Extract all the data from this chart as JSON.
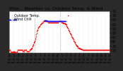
{
  "title": "Milw... Weather vs. Outdoor Temp. & Wind ...",
  "legend": [
    "Outdoor Temp.",
    "Wind Chill"
  ],
  "bg_color": "#2a2a2a",
  "plot_bg": "#ffffff",
  "outdoor_color": "#ff0000",
  "windchill_color": "#0000ff",
  "title_color": "#000000",
  "title_fontsize": 4.5,
  "legend_fontsize": 3.5,
  "tick_fontsize": 3.5,
  "marker_size": 1.2,
  "ylim": [
    27,
    75
  ],
  "xlim": [
    0,
    287
  ],
  "yticks": [
    75,
    70,
    65,
    60,
    55,
    50,
    45,
    40,
    35,
    30
  ],
  "vlines": [
    72,
    144
  ],
  "outdoor_x": [
    0,
    1,
    2,
    3,
    4,
    5,
    6,
    7,
    8,
    9,
    10,
    11,
    12,
    13,
    14,
    15,
    16,
    17,
    18,
    19,
    20,
    21,
    22,
    23,
    24,
    25,
    26,
    27,
    28,
    29,
    30,
    31,
    32,
    33,
    34,
    35,
    36,
    37,
    38,
    39,
    40,
    41,
    42,
    43,
    44,
    45,
    46,
    47,
    48,
    49,
    50,
    51,
    52,
    53,
    54,
    55,
    56,
    57,
    58,
    59,
    60,
    61,
    62,
    63,
    64,
    65,
    66,
    67,
    68,
    69,
    70,
    71,
    72,
    73,
    74,
    75,
    76,
    77,
    78,
    79,
    80,
    81,
    82,
    83,
    84,
    85,
    86,
    87,
    88,
    89,
    90,
    91,
    92,
    93,
    94,
    95,
    96,
    97,
    98,
    99,
    100,
    101,
    102,
    103,
    104,
    105,
    106,
    107,
    108,
    109,
    110,
    111,
    112,
    113,
    114,
    115,
    116,
    117,
    118,
    119,
    120,
    121,
    122,
    123,
    124,
    125,
    126,
    127,
    128,
    129,
    130,
    131,
    132,
    133,
    134,
    135,
    136,
    137,
    138,
    139,
    140,
    141,
    142,
    143,
    144,
    145,
    146,
    147,
    148,
    149,
    150,
    151,
    152,
    153,
    154,
    155,
    156,
    157,
    158,
    159,
    160,
    161,
    162,
    163,
    164,
    165,
    166,
    167,
    168,
    169,
    170,
    171,
    172,
    173,
    174,
    175,
    176,
    177,
    178,
    179,
    180,
    181,
    182,
    183,
    184,
    185,
    186,
    187,
    188,
    189,
    190,
    191,
    192,
    193,
    194,
    195,
    196,
    197,
    198,
    199,
    200,
    201,
    202,
    203,
    204,
    205,
    206,
    207,
    208,
    209,
    210,
    211,
    212,
    213,
    214,
    215,
    216,
    217,
    218,
    219,
    220,
    221,
    222,
    223,
    224,
    225,
    226,
    227,
    228,
    229,
    230,
    231,
    232,
    233,
    234,
    235,
    236,
    237,
    238,
    239,
    240,
    241,
    242,
    243,
    244,
    245,
    246,
    247,
    248,
    249,
    250,
    251,
    252,
    253,
    254,
    255,
    256,
    257,
    258,
    259,
    260,
    261,
    262,
    263,
    264,
    265,
    266,
    267,
    268,
    269,
    270,
    271,
    272,
    273,
    274,
    275,
    276,
    277,
    278,
    279,
    280,
    281,
    282,
    283,
    284,
    285,
    286,
    287
  ],
  "outdoor_y": [
    30,
    30,
    30,
    29,
    29,
    28,
    28,
    28,
    28,
    28,
    28,
    28,
    29,
    29,
    28,
    28,
    28,
    28,
    27,
    27,
    27,
    28,
    29,
    30,
    30,
    30,
    30,
    30,
    30,
    30,
    30,
    30,
    30,
    30,
    30,
    30,
    30,
    30,
    29,
    29,
    29,
    29,
    30,
    30,
    30,
    30,
    30,
    30,
    30,
    29,
    29,
    29,
    29,
    29,
    29,
    29,
    29,
    30,
    30,
    30,
    31,
    31,
    32,
    32,
    33,
    33,
    34,
    35,
    36,
    37,
    38,
    39,
    40,
    41,
    42,
    44,
    46,
    48,
    50,
    52,
    53,
    54,
    55,
    56,
    57,
    57,
    58,
    58,
    59,
    59,
    60,
    60,
    61,
    61,
    62,
    62,
    62,
    63,
    63,
    63,
    63,
    63,
    63,
    63,
    63,
    63,
    63,
    63,
    63,
    63,
    63,
    62,
    62,
    62,
    62,
    62,
    62,
    62,
    62,
    62,
    62,
    62,
    62,
    62,
    62,
    62,
    62,
    62,
    62,
    62,
    62,
    62,
    62,
    62,
    62,
    62,
    62,
    62,
    62,
    62,
    63,
    63,
    63,
    63,
    63,
    63,
    63,
    63,
    63,
    62,
    62,
    62,
    62,
    61,
    61,
    61,
    61,
    61,
    61,
    60,
    60,
    59,
    59,
    58,
    57,
    56,
    55,
    55,
    70,
    54,
    53,
    52,
    51,
    50,
    50,
    49,
    48,
    47,
    46,
    45,
    45,
    44,
    43,
    42,
    41,
    40,
    40,
    39,
    38,
    37,
    37,
    36,
    35,
    35,
    34,
    34,
    33,
    33,
    33,
    33,
    32,
    32,
    32,
    32,
    31,
    31,
    31,
    31,
    31,
    30,
    30,
    30,
    30,
    30,
    30,
    30,
    30,
    30,
    30,
    30,
    30,
    30,
    30,
    30,
    30,
    30,
    30,
    30,
    30,
    30,
    30,
    30,
    30,
    30,
    30,
    30,
    30,
    30,
    30,
    30,
    30,
    30,
    30,
    30,
    30,
    30,
    30,
    30,
    30,
    30,
    30,
    30,
    30,
    30,
    30,
    30,
    30,
    30,
    30,
    30,
    30,
    30,
    30,
    30,
    30,
    30,
    30,
    30,
    30,
    30,
    30,
    30,
    30,
    30,
    30,
    30,
    30,
    30,
    30,
    30,
    30,
    30,
    30,
    30,
    30,
    30,
    30,
    30
  ],
  "wc_x": [
    0,
    1,
    2,
    3,
    4,
    5,
    6,
    7,
    8,
    9,
    10,
    11,
    12,
    13,
    14,
    15,
    16,
    17,
    18,
    19,
    20,
    100,
    101,
    102,
    103,
    104,
    105,
    106,
    107,
    108,
    109,
    110,
    111,
    112,
    113,
    114,
    115,
    116,
    117,
    118,
    119,
    120,
    121,
    122,
    123,
    124,
    125,
    126,
    127,
    128,
    129,
    130,
    131,
    132,
    133,
    134,
    135,
    136,
    137,
    138,
    139,
    140,
    141,
    142,
    143,
    144,
    145,
    146,
    147,
    148,
    149,
    150,
    151,
    152,
    153,
    154,
    155,
    156,
    157,
    158,
    159,
    160
  ],
  "wc_y": [
    65,
    65,
    65,
    65,
    65,
    65,
    65,
    65,
    65,
    65,
    65,
    65,
    65,
    65,
    65,
    65,
    65,
    65,
    65,
    65,
    65,
    64,
    64,
    64,
    64,
    64,
    64,
    64,
    63,
    63,
    63,
    63,
    63,
    63,
    63,
    63,
    63,
    63,
    63,
    63,
    63,
    63,
    63,
    63,
    63,
    63,
    63,
    63,
    63,
    63,
    63,
    63,
    63,
    63,
    63,
    63,
    63,
    63,
    63,
    63,
    63,
    63,
    63,
    63,
    63,
    63,
    63,
    63,
    63,
    63,
    63,
    63,
    63,
    63,
    63,
    63,
    63,
    63,
    63,
    63,
    63,
    63
  ]
}
